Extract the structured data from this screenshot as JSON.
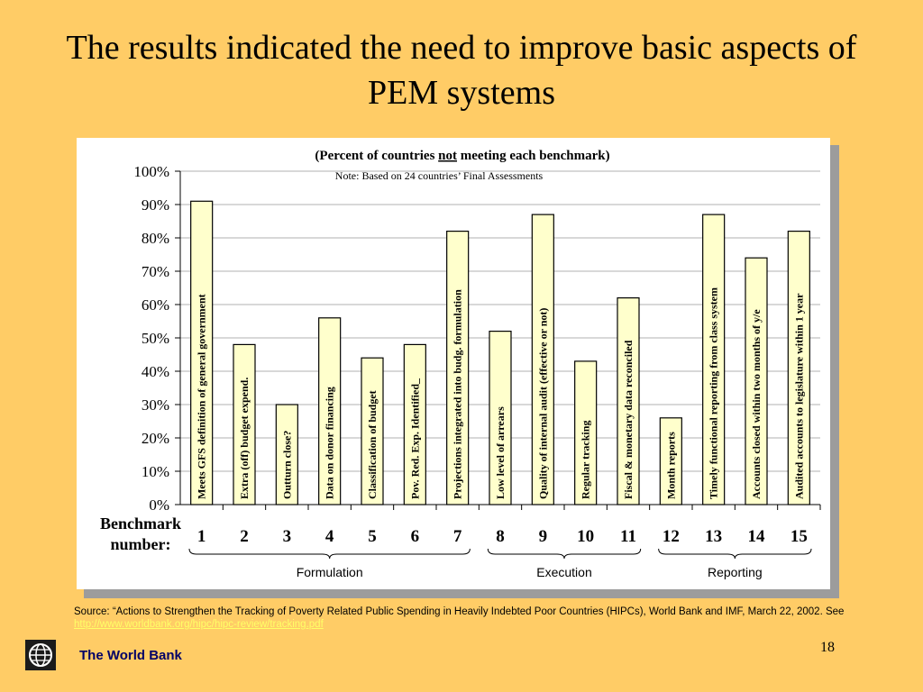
{
  "slide": {
    "title": "The results indicated the need to improve basic aspects of PEM systems",
    "page_number": "18",
    "org_name": "The World Bank",
    "source_text": "Source: “Actions to Strengthen the Tracking of Poverty Related Public Spending in Heavily Indebted Poor Countries (HIPCs),  World Bank and IMF, March 22,  2002. See ",
    "source_link": "http://www.worldbank.org/hipc/hipc-review/tracking.pdf",
    "benchmark_label_line1": "Benchmark",
    "benchmark_label_line2": "number:",
    "groups": [
      {
        "label": "Formulation",
        "from": 1,
        "to": 7
      },
      {
        "label": "Execution",
        "from": 8,
        "to": 11
      },
      {
        "label": "Reporting",
        "from": 12,
        "to": 15
      }
    ],
    "colors": {
      "background": "#FFCC66",
      "bar_fill": "#FFFFCC",
      "bar_stroke": "#000000",
      "source_link": "#FFFF66",
      "org_name": "#000066"
    }
  },
  "chart_data": {
    "type": "bar",
    "title_pre": "(Percent of countries ",
    "title_emph": "not",
    "title_post": " meeting each benchmark)",
    "subtitle": "Note: Based on 24 countries’ Final Assessments",
    "ylim": [
      0,
      100
    ],
    "yticks": [
      "0%",
      "10%",
      "20%",
      "30%",
      "40%",
      "50%",
      "60%",
      "70%",
      "80%",
      "90%",
      "100%"
    ],
    "grid": "y",
    "categories": [
      "1",
      "2",
      "3",
      "4",
      "5",
      "6",
      "7",
      "8",
      "9",
      "10",
      "11",
      "12",
      "13",
      "14",
      "15"
    ],
    "bar_labels": [
      "Meets GFS definition of general government",
      "Extra (off) budget expend.",
      "Outturn close?",
      "Data on donor financing",
      "Classification of budget",
      "Pov. Red. Exp. Identified_",
      "Projections integrated into budg. formulation",
      "Low level of arrears",
      "Quality of internal audit (effective or not)",
      "Regular tracking",
      "Fiscal & monetary data reconciled",
      "Month reports",
      "Timely functional reporting from class system",
      "Accounts closed within two months of y/e",
      "Audited accounts to legislature  within 1 year"
    ],
    "values": [
      91,
      48,
      30,
      56,
      44,
      48,
      82,
      52,
      87,
      43,
      62,
      26,
      87,
      74,
      82
    ]
  }
}
